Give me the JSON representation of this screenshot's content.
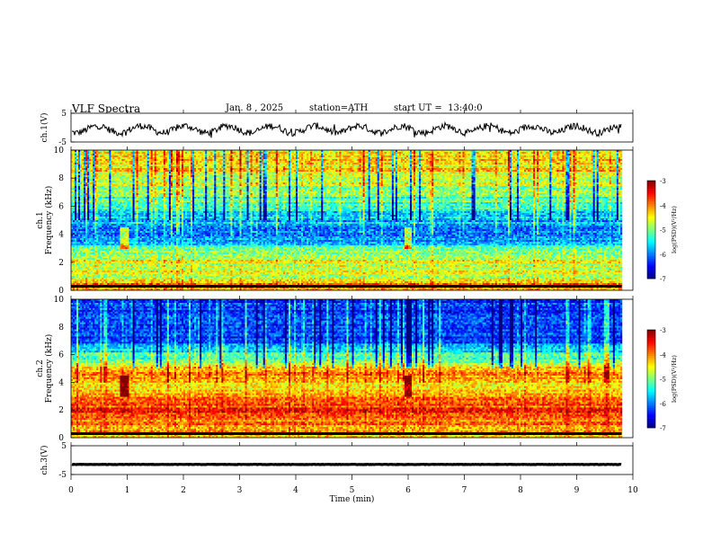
{
  "header": {
    "title": "VLF Spectra",
    "date": "Jan. 8 , 2025",
    "station": "station=ATH",
    "start": "start UT =  13:40:0"
  },
  "chart_data": [
    {
      "type": "line",
      "panel": "ch1-waveform",
      "ylabel": "ch.1(V)",
      "yticks": [
        "5",
        "-5"
      ],
      "ylim": [
        -5,
        5
      ],
      "xlim": [
        0,
        10
      ],
      "baseline": -0.6,
      "amplitude": 1.2,
      "end_x": 9.8
    },
    {
      "type": "heatmap",
      "panel": "ch1-spectrogram",
      "ylabel": "ch.1",
      "ylabel2": "Frequency (kHz)",
      "yticks": [
        "0",
        "2",
        "4",
        "6",
        "8",
        "10"
      ],
      "ylim": [
        0,
        10
      ],
      "xlim": [
        0,
        10
      ],
      "colorbar": {
        "label": "log(PSD)(V²/Hz)",
        "ticks": [
          "-3",
          "-4",
          "-5",
          "-6",
          "-7"
        ],
        "range": [
          -7,
          -3
        ]
      },
      "bands": [
        {
          "f": 0.5,
          "level": -4.0
        },
        {
          "f": 1.0,
          "level": -4.8
        },
        {
          "f": 2.2,
          "level": -4.6
        },
        {
          "f": 4.0,
          "level": -6.2
        },
        {
          "f": 8.5,
          "level": -4.4
        }
      ],
      "events_min": [
        0.95,
        6.0
      ]
    },
    {
      "type": "heatmap",
      "panel": "ch2-spectrogram",
      "ylabel": "ch.2",
      "ylabel2": "Frequency (kHz)",
      "yticks": [
        "0",
        "2",
        "4",
        "6",
        "8",
        "10"
      ],
      "ylim": [
        0,
        10
      ],
      "xlim": [
        0,
        10
      ],
      "colorbar": {
        "label": "log(PSD)(V²/Hz)",
        "ticks": [
          "-3",
          "-4",
          "-5",
          "-6",
          "-7"
        ],
        "range": [
          -7,
          -3
        ]
      },
      "bands": [
        {
          "f": 0.5,
          "level": -4.2
        },
        {
          "f": 1.9,
          "level": -3.6
        },
        {
          "f": 3.5,
          "level": -4.4
        },
        {
          "f": 4.6,
          "level": -4.0
        },
        {
          "f": 7.0,
          "level": -6.3
        }
      ],
      "events_min": [
        0.95,
        6.0
      ]
    },
    {
      "type": "line",
      "panel": "ch3-waveform",
      "ylabel": "ch.3(V)",
      "yticks": [
        "5",
        "-5"
      ],
      "ylim": [
        -5,
        5
      ],
      "xlim": [
        0,
        10
      ],
      "baseline": -1.5,
      "amplitude": 0.15,
      "end_x": 9.8,
      "xlabel": "Time (min)",
      "xticks": [
        "0",
        "1",
        "2",
        "3",
        "4",
        "5",
        "6",
        "7",
        "8",
        "9",
        "10"
      ]
    }
  ]
}
